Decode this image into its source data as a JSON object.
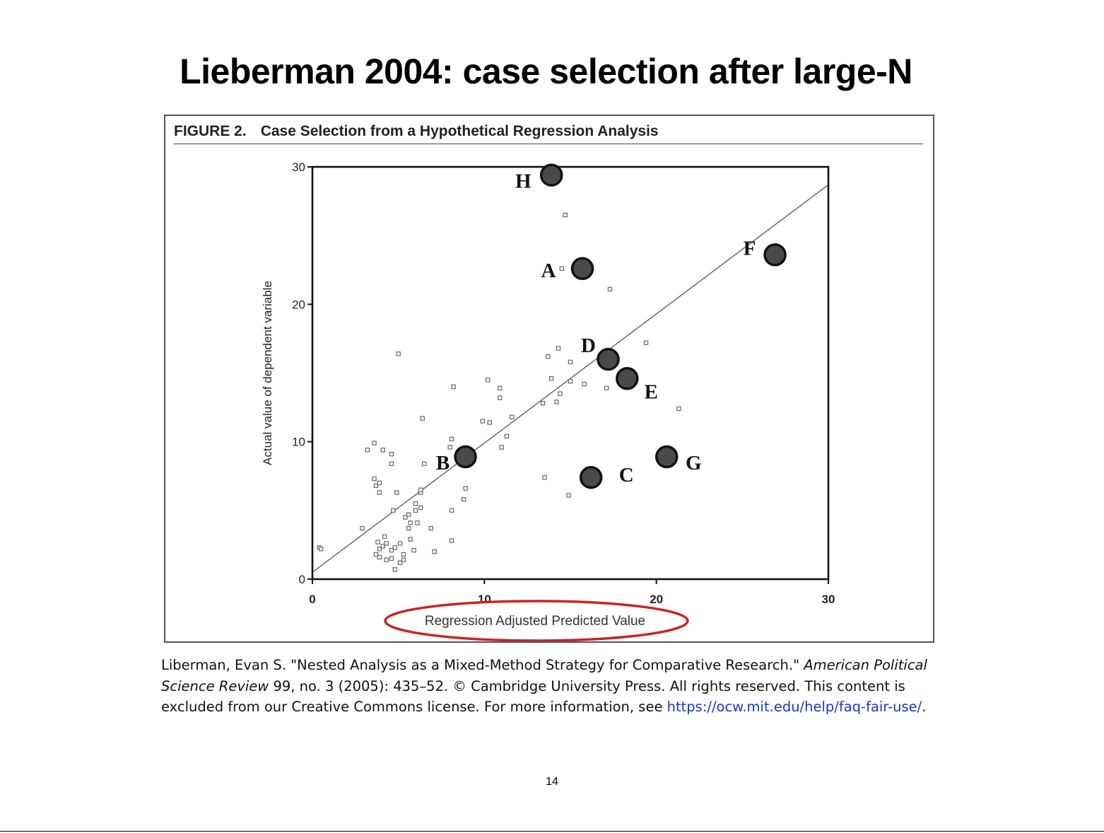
{
  "slide": {
    "title": "Lieberman 2004: case selection after large-N",
    "page_number": "14"
  },
  "figure": {
    "caption_number": "FIGURE 2.",
    "caption_text": "Case Selection from a Hypothetical Regression Analysis",
    "annotation": "red ellipse highlighting x-axis label",
    "annotation_color": "#cc2222"
  },
  "credit": {
    "part1": "Liberman, Evan S. \"Nested Analysis as a Mixed-Method Strategy for Comparative Research.\" ",
    "journal": "American Political Science Review",
    "part2": " 99, no. 3 (2005): 435–52. © Cambridge University Press. All rights reserved. This content is excluded from our Creative Commons license. For more information, see ",
    "link": "https://ocw.mit.edu/help/faq-fair-use/",
    "part3": "."
  },
  "chart_data": {
    "type": "scatter",
    "title": "Case Selection from a Hypothetical Regression Analysis",
    "xlabel": "Regression Adjusted Predicted Value",
    "ylabel": "Actual value of dependent variable",
    "xlim": [
      0,
      30
    ],
    "ylim": [
      0,
      30
    ],
    "xticks": [
      0,
      10,
      20,
      30
    ],
    "yticks": [
      0,
      10,
      20,
      30
    ],
    "grid": false,
    "regression_line": {
      "x": [
        0,
        30
      ],
      "y": [
        0.5,
        28.7
      ]
    },
    "labeled_cases": [
      {
        "label": "H",
        "x": 13.9,
        "y": 29.4
      },
      {
        "label": "A",
        "x": 15.7,
        "y": 22.6
      },
      {
        "label": "F",
        "x": 26.9,
        "y": 23.6
      },
      {
        "label": "D",
        "x": 17.2,
        "y": 16.0
      },
      {
        "label": "E",
        "x": 18.3,
        "y": 14.6
      },
      {
        "label": "B",
        "x": 8.9,
        "y": 8.9
      },
      {
        "label": "C",
        "x": 16.2,
        "y": 7.4
      },
      {
        "label": "G",
        "x": 20.6,
        "y": 8.9
      }
    ],
    "points": [
      [
        0.4,
        2.3
      ],
      [
        0.5,
        2.2
      ],
      [
        2.9,
        3.7
      ],
      [
        3.2,
        9.4
      ],
      [
        3.6,
        9.9
      ],
      [
        4.1,
        9.4
      ],
      [
        4.6,
        9.1
      ],
      [
        4.6,
        8.4
      ],
      [
        3.6,
        7.3
      ],
      [
        3.7,
        6.8
      ],
      [
        3.9,
        6.3
      ],
      [
        3.9,
        7.0
      ],
      [
        4.9,
        6.3
      ],
      [
        4.7,
        5.0
      ],
      [
        5.4,
        4.5
      ],
      [
        5.6,
        4.7
      ],
      [
        5.7,
        4.1
      ],
      [
        5.6,
        3.7
      ],
      [
        6.0,
        5.0
      ],
      [
        6.0,
        5.5
      ],
      [
        6.3,
        6.3
      ],
      [
        6.3,
        6.5
      ],
      [
        6.3,
        5.2
      ],
      [
        6.1,
        4.1
      ],
      [
        6.9,
        3.7
      ],
      [
        5.7,
        2.9
      ],
      [
        4.2,
        3.1
      ],
      [
        4.1,
        2.4
      ],
      [
        4.3,
        2.6
      ],
      [
        3.9,
        2.2
      ],
      [
        3.8,
        2.7
      ],
      [
        4.6,
        2.1
      ],
      [
        4.6,
        1.5
      ],
      [
        4.8,
        2.3
      ],
      [
        5.1,
        2.6
      ],
      [
        5.1,
        1.2
      ],
      [
        5.3,
        1.4
      ],
      [
        5.3,
        1.8
      ],
      [
        4.3,
        1.4
      ],
      [
        3.9,
        1.6
      ],
      [
        3.7,
        1.8
      ],
      [
        4.8,
        0.7
      ],
      [
        5.9,
        2.1
      ],
      [
        7.1,
        2.0
      ],
      [
        8.1,
        2.8
      ],
      [
        8.1,
        5.0
      ],
      [
        8.8,
        5.8
      ],
      [
        8.9,
        6.6
      ],
      [
        8.0,
        9.6
      ],
      [
        8.1,
        10.2
      ],
      [
        6.5,
        8.4
      ],
      [
        6.4,
        11.7
      ],
      [
        8.2,
        14.0
      ],
      [
        9.9,
        11.5
      ],
      [
        10.3,
        11.4
      ],
      [
        10.2,
        14.5
      ],
      [
        10.9,
        13.9
      ],
      [
        10.9,
        13.2
      ],
      [
        11.0,
        9.6
      ],
      [
        11.3,
        10.4
      ],
      [
        11.6,
        11.8
      ],
      [
        5.0,
        16.4
      ],
      [
        13.5,
        7.4
      ],
      [
        13.4,
        12.8
      ],
      [
        13.9,
        14.6
      ],
      [
        14.2,
        12.9
      ],
      [
        14.4,
        13.5
      ],
      [
        14.9,
        6.1
      ],
      [
        13.7,
        16.2
      ],
      [
        14.3,
        16.8
      ],
      [
        15.0,
        14.4
      ],
      [
        15.0,
        15.8
      ],
      [
        15.8,
        14.2
      ],
      [
        16.0,
        8.0
      ],
      [
        16.2,
        7.9
      ],
      [
        17.1,
        13.9
      ],
      [
        19.4,
        17.2
      ],
      [
        21.3,
        12.4
      ],
      [
        14.7,
        26.5
      ],
      [
        17.3,
        21.1
      ],
      [
        14.5,
        22.6
      ]
    ]
  }
}
